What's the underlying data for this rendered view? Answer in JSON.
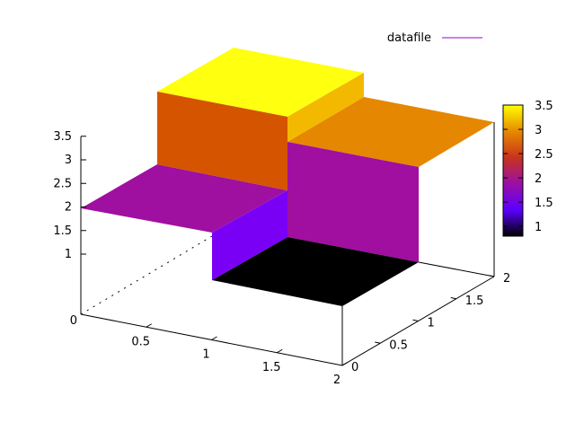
{
  "chart_data": {
    "type": "surface3d",
    "title": "",
    "legend": {
      "label": "datafile",
      "color": "#9400d3",
      "placement": "top-right"
    },
    "x_ticks": [
      "0",
      "0.5",
      "1",
      "1.5",
      "2"
    ],
    "y_ticks": [
      "0",
      "0.5",
      "1",
      "1.5",
      "2"
    ],
    "z_ticks": [
      "1",
      "1.5",
      "2",
      "2.5",
      "3",
      "3.5"
    ],
    "colorbar": {
      "ticks": [
        "1",
        "1.5",
        "2",
        "2.5",
        "3",
        "3.5"
      ],
      "range": [
        0.8,
        3.5
      ],
      "palette": [
        "#000000",
        "#5a00ff",
        "#9b0fa5",
        "#c8331c",
        "#e68a00",
        "#ffff00"
      ]
    },
    "surface": {
      "description_levels": [
        {
          "region": "x 0-1, y 1-2",
          "z": 2
        },
        {
          "region": "x 1-2, y 1-2",
          "z": 3
        },
        {
          "region": "x 1-2, y 0-1 (raised block)",
          "z": 3.5
        },
        {
          "region": "x 0-1, y 0-1 (pit)",
          "z": 0
        }
      ]
    }
  }
}
